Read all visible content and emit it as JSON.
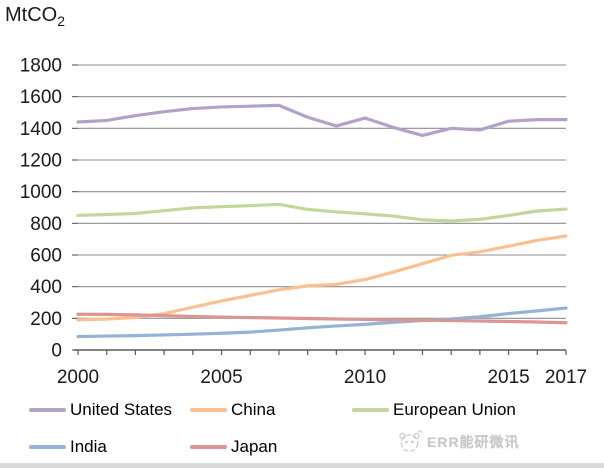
{
  "title": {
    "text": "MtCO",
    "subscript": "2"
  },
  "watermark": {
    "text": "ERR能研微讯",
    "icon": "panda-logo-icon"
  },
  "chart_data": {
    "type": "line",
    "unit_label": "MtCO2",
    "x": [
      2000,
      2001,
      2002,
      2003,
      2004,
      2005,
      2006,
      2007,
      2008,
      2009,
      2010,
      2011,
      2012,
      2013,
      2014,
      2015,
      2016,
      2017
    ],
    "x_axis_tick_years": [
      2000,
      2001,
      2002,
      2003,
      2004,
      2005,
      2006,
      2007,
      2008,
      2009,
      2010,
      2011,
      2012,
      2013,
      2014,
      2015,
      2016,
      2017
    ],
    "x_label_years": [
      2000,
      2005,
      2010,
      2015,
      2017
    ],
    "xlim": [
      2000,
      2017
    ],
    "ylim": [
      0,
      1800
    ],
    "y_ticks": [
      0,
      200,
      400,
      600,
      800,
      1000,
      1200,
      1400,
      1600,
      1800
    ],
    "grid": true,
    "legend_position": "bottom",
    "series": [
      {
        "name": "United States",
        "color": "#b3a2c7",
        "values": [
          1440,
          1450,
          1480,
          1505,
          1525,
          1535,
          1540,
          1545,
          1470,
          1415,
          1465,
          1405,
          1355,
          1400,
          1390,
          1445,
          1455,
          1455
        ]
      },
      {
        "name": "China",
        "color": "#fac08f",
        "values": [
          190,
          196,
          205,
          230,
          270,
          310,
          345,
          380,
          405,
          415,
          445,
          493,
          545,
          598,
          620,
          656,
          693,
          720
        ]
      },
      {
        "name": "European Union",
        "color": "#c3d69b",
        "values": [
          850,
          856,
          862,
          880,
          898,
          905,
          912,
          920,
          888,
          872,
          860,
          845,
          822,
          815,
          825,
          850,
          878,
          890
        ]
      },
      {
        "name": "India",
        "color": "#95b3d7",
        "values": [
          85,
          88,
          91,
          95,
          100,
          106,
          113,
          126,
          140,
          152,
          162,
          175,
          186,
          196,
          210,
          230,
          247,
          265
        ]
      },
      {
        "name": "Japan",
        "color": "#d99694",
        "values": [
          226,
          225,
          222,
          217,
          212,
          208,
          205,
          202,
          199,
          196,
          193,
          190,
          188,
          186,
          183,
          180,
          177,
          172
        ]
      }
    ]
  }
}
